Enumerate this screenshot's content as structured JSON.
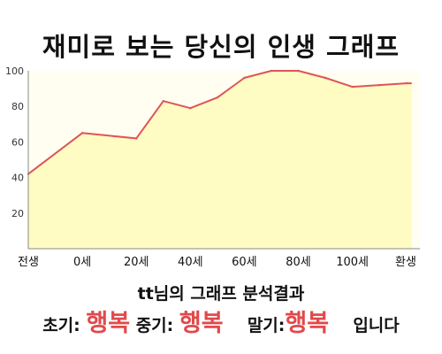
{
  "chart_data": {
    "type": "area",
    "title": "재미로 보는 당신의 인생 그래프",
    "categories": [
      "전생",
      "0세",
      "20세",
      "40세",
      "60세",
      "80세",
      "100세",
      "환생"
    ],
    "x": [
      -20,
      0,
      20,
      30,
      40,
      50,
      60,
      70,
      80,
      90,
      100,
      110,
      120
    ],
    "values": [
      42,
      65,
      62,
      83,
      79,
      85,
      96,
      100,
      100,
      96,
      91,
      92,
      93
    ],
    "ylim": [
      0,
      100
    ],
    "yticks": [
      20,
      40,
      60,
      80,
      100
    ],
    "grid": false,
    "colors": {
      "fill": "#fefcc3",
      "line": "#df5459",
      "plot_bg": "#fffef0",
      "axis": "#888888"
    }
  },
  "result": {
    "heading": "tt님의 그래프 분석결과",
    "early_label": "초기:",
    "early_value": "행복",
    "middle_label": "중기:",
    "middle_value": "행복",
    "late_label": "말기:",
    "late_value": "행복",
    "ending": "입니다"
  }
}
